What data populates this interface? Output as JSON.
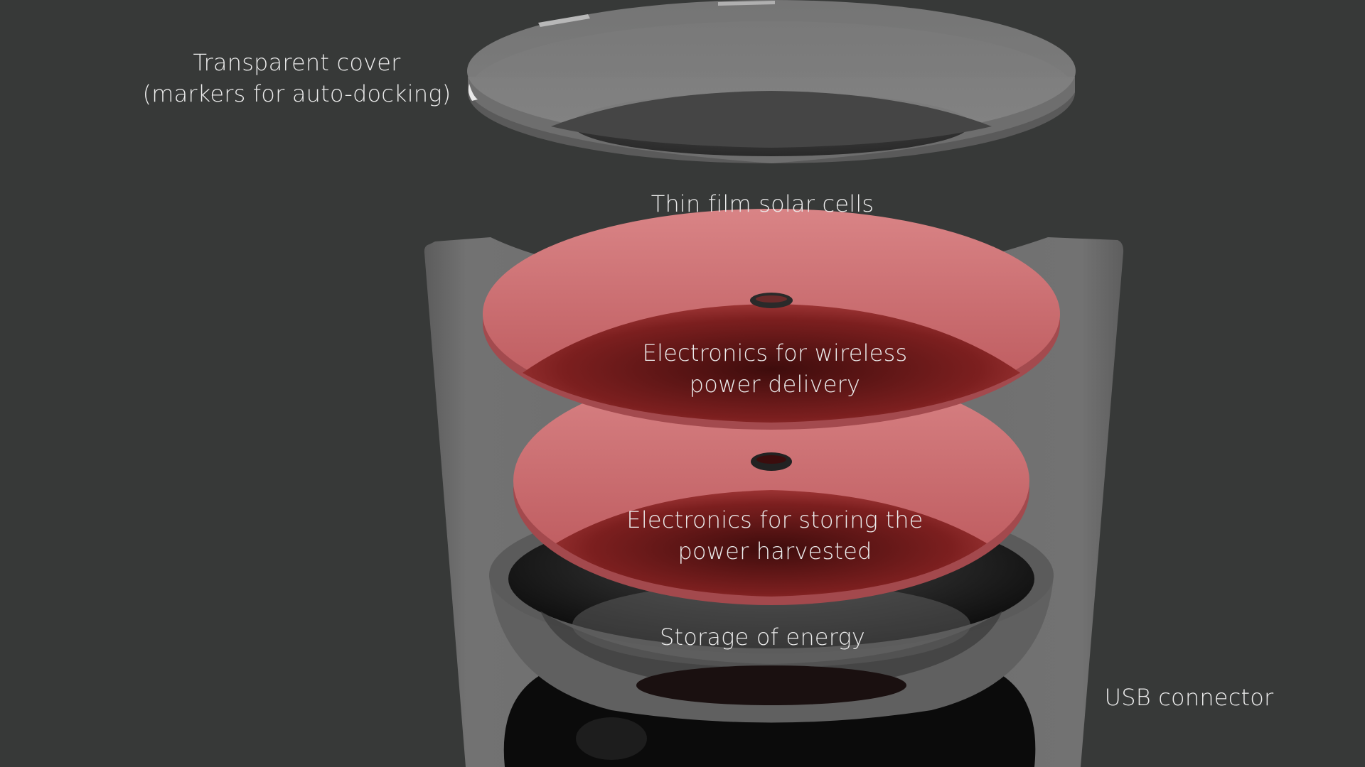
{
  "labels": {
    "cover": {
      "line1": "Transparent cover",
      "line2": "(markers for auto-docking)"
    },
    "solar": "Thin film solar cells",
    "wireless": {
      "line1": "Electronics for wireless",
      "line2": "power delivery"
    },
    "storing": {
      "line1": "Electronics for storing the",
      "line2": "power harvested"
    },
    "storage": "Storage of energy",
    "usb": "USB connector"
  },
  "colors": {
    "background": "#373938",
    "housing": "#6e6e6e",
    "cover": "#7c7c7c",
    "board": "#c96a6e",
    "board_deep": "#7c2020",
    "bowl": "#141414",
    "text": "#ececec"
  }
}
